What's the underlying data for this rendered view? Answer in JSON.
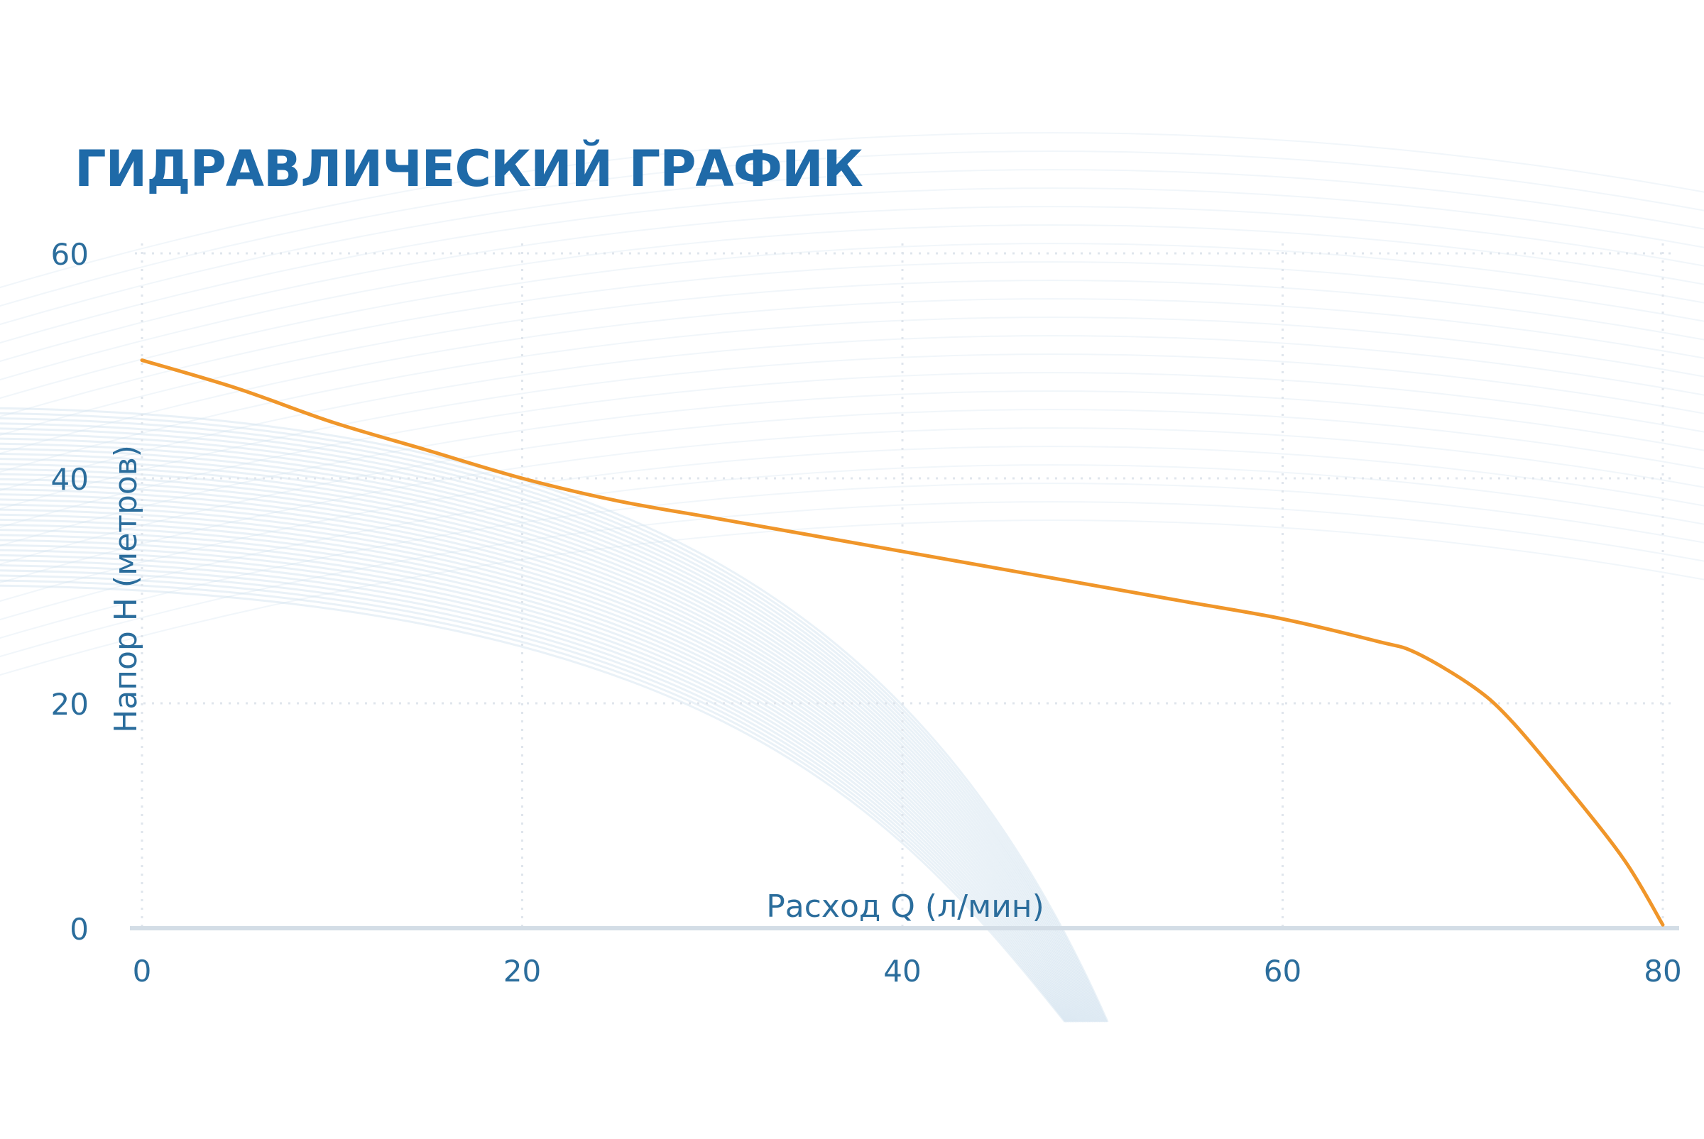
{
  "colors": {
    "title": "#1f6aa8",
    "axis_text": "#2b6d9c",
    "curve": "#f0962a",
    "axis_line": "#d3dde6",
    "grid": "#dfe5ec",
    "swoosh": "#cfe0ee",
    "wave": "#e6eef5"
  },
  "chart_data": {
    "type": "line",
    "title": "ГИДРАВЛИЧЕСКИЙ ГРАФИК",
    "xlabel": "Расход Q (л/мин)",
    "ylabel": "Напор Н (метров)",
    "xlim": [
      0,
      80
    ],
    "ylim": [
      0,
      60
    ],
    "x_ticks": [
      0,
      20,
      40,
      60,
      80
    ],
    "y_ticks": [
      0,
      20,
      40,
      60
    ],
    "x_tick_labels": [
      "0",
      "20",
      "40",
      "60",
      "80"
    ],
    "y_tick_labels": [
      "0",
      "20",
      "40",
      "60"
    ],
    "grid": true,
    "grid_style": "dotted",
    "series": [
      {
        "x": [
          0,
          5,
          10,
          15,
          20,
          25,
          30,
          35,
          40,
          45,
          50,
          55,
          60,
          65,
          67,
          70,
          72,
          75,
          78,
          80
        ],
        "y": [
          50.5,
          48,
          45,
          42.5,
          40,
          38,
          36.5,
          35,
          33.5,
          32,
          30.5,
          29,
          27.5,
          25.5,
          24.5,
          21.5,
          18.5,
          12.5,
          6,
          0.3
        ]
      }
    ]
  }
}
